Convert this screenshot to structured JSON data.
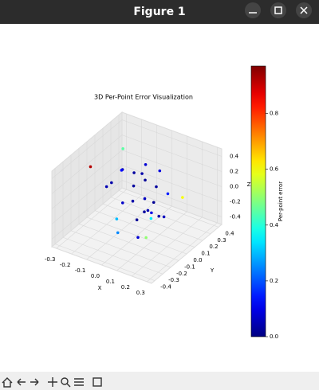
{
  "window": {
    "title": "Figure 1"
  },
  "chart_data": {
    "type": "scatter3d",
    "title": "3D Per-Point Error Visualization",
    "xlabel": "X",
    "ylabel": "Y",
    "zlabel": "Z",
    "colormap": "jet",
    "x": [
      -0.2,
      -0.15,
      -0.1,
      -0.22,
      -0.18,
      -0.05,
      0.0,
      0.05,
      0.1,
      0.15,
      0.12,
      0.08,
      0.2,
      -0.25,
      -0.12,
      0.02,
      0.18,
      -0.08,
      0.25,
      -0.28,
      0.1,
      -0.02,
      0.22,
      -0.15,
      0.05,
      0.14,
      -0.2,
      0.0,
      0.07,
      -0.1
    ],
    "y": [
      0.2,
      0.25,
      0.3,
      0.1,
      0.15,
      0.2,
      0.1,
      0.0,
      -0.05,
      -0.1,
      0.05,
      -0.15,
      -0.2,
      0.3,
      0.05,
      0.25,
      0.0,
      -0.1,
      0.1,
      -0.05,
      0.2,
      -0.2,
      -0.3,
      0.35,
      0.15,
      -0.25,
      0.0,
      -0.05,
      0.08,
      0.15
    ],
    "z": [
      0.05,
      0.0,
      0.1,
      -0.05,
      0.1,
      0.02,
      -0.1,
      -0.15,
      -0.05,
      0.0,
      -0.2,
      -0.1,
      0.05,
      0.2,
      -0.2,
      0.15,
      -0.12,
      -0.25,
      0.1,
      0.25,
      -0.05,
      -0.3,
      -0.1,
      -0.1,
      0.05,
      -0.2,
      0.0,
      0.0,
      -0.08,
      -0.05
    ],
    "values": [
      0.05,
      0.03,
      0.08,
      0.04,
      0.12,
      0.02,
      0.06,
      0.03,
      0.05,
      0.1,
      0.04,
      0.02,
      0.35,
      0.45,
      0.07,
      0.09,
      0.06,
      0.3,
      0.6,
      0.92,
      0.15,
      0.25,
      0.5,
      0.04,
      0.03,
      0.08,
      0.05,
      0.04,
      0.02,
      0.03
    ],
    "xlim": [
      -0.33,
      0.33
    ],
    "ylim": [
      -0.44,
      0.44
    ],
    "zlim": [
      -0.5,
      0.5
    ],
    "xticks": [
      -0.3,
      -0.2,
      -0.1,
      {
        "value": 0,
        "label": "0.0"
      },
      0.1,
      0.2,
      0.3
    ],
    "yticks": [
      -0.4,
      -0.3,
      -0.2,
      -0.1,
      {
        "value": 0,
        "label": "0.0"
      },
      0.1,
      0.2,
      0.3,
      0.4
    ],
    "zticks": [
      -0.4,
      -0.2,
      {
        "value": 0,
        "label": "0.0"
      },
      0.2,
      0.4
    ],
    "colorbar": {
      "label": "Per-point error",
      "lim": [
        0,
        0.97
      ],
      "ticks": [
        {
          "value": 0,
          "label": "0.0"
        },
        0.2,
        0.4,
        0.6,
        0.8
      ]
    }
  }
}
